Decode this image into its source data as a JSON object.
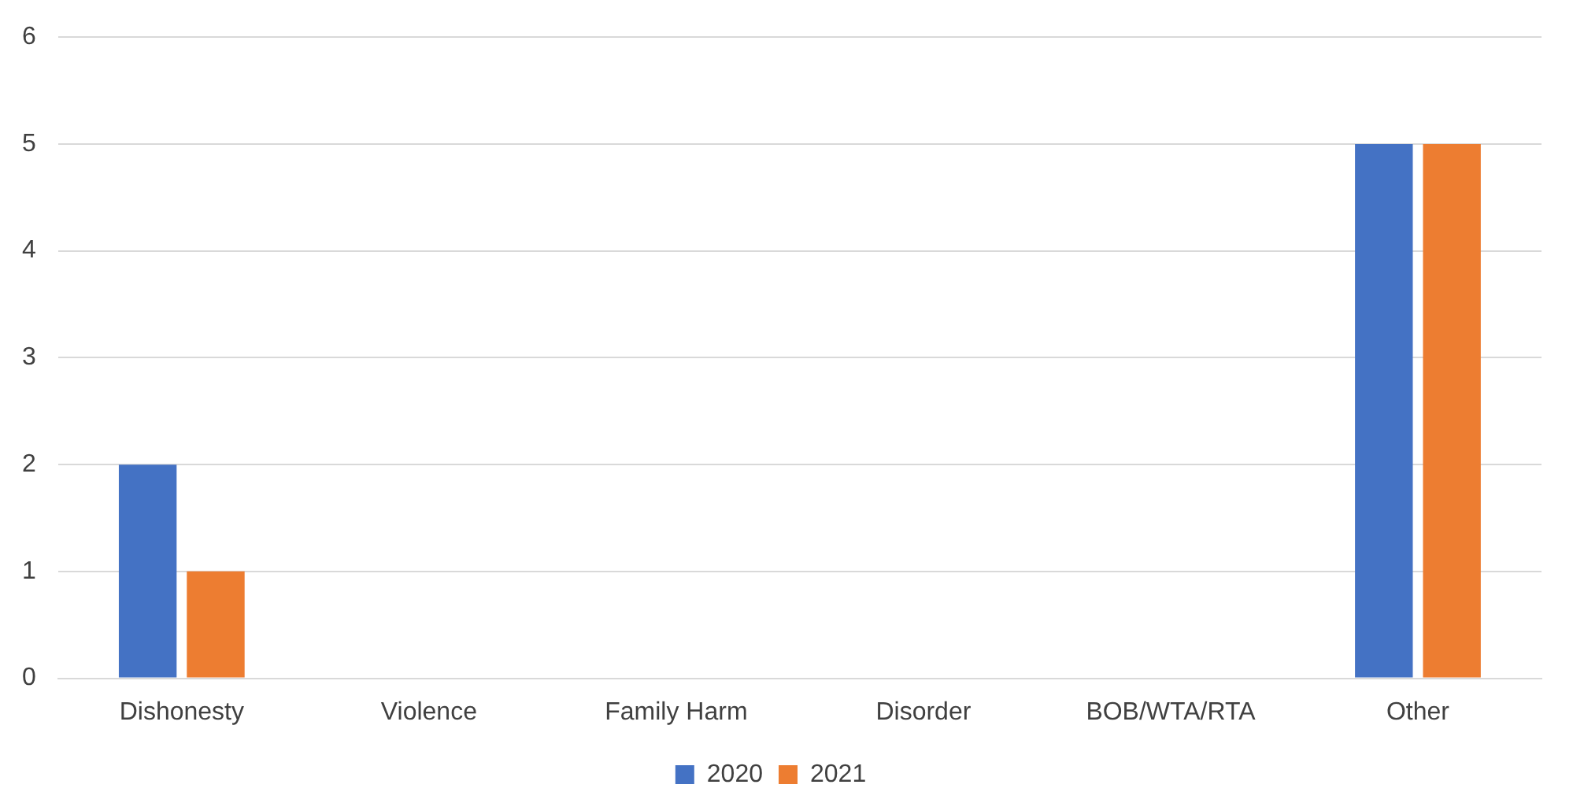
{
  "chart_data": {
    "type": "bar",
    "categories": [
      "Dishonesty",
      "Violence",
      "Family Harm",
      "Disorder",
      "BOB/WTA/RTA",
      "Other"
    ],
    "series": [
      {
        "name": "2020",
        "color": "#4472c4",
        "values": [
          2,
          0,
          0,
          0,
          0,
          5
        ]
      },
      {
        "name": "2021",
        "color": "#ed7d31",
        "values": [
          1,
          0,
          0,
          0,
          0,
          5
        ]
      }
    ],
    "ylim": [
      0,
      6
    ],
    "yticks": [
      0,
      1,
      2,
      3,
      4,
      5,
      6
    ],
    "grid": "y",
    "legend": "bottom"
  }
}
